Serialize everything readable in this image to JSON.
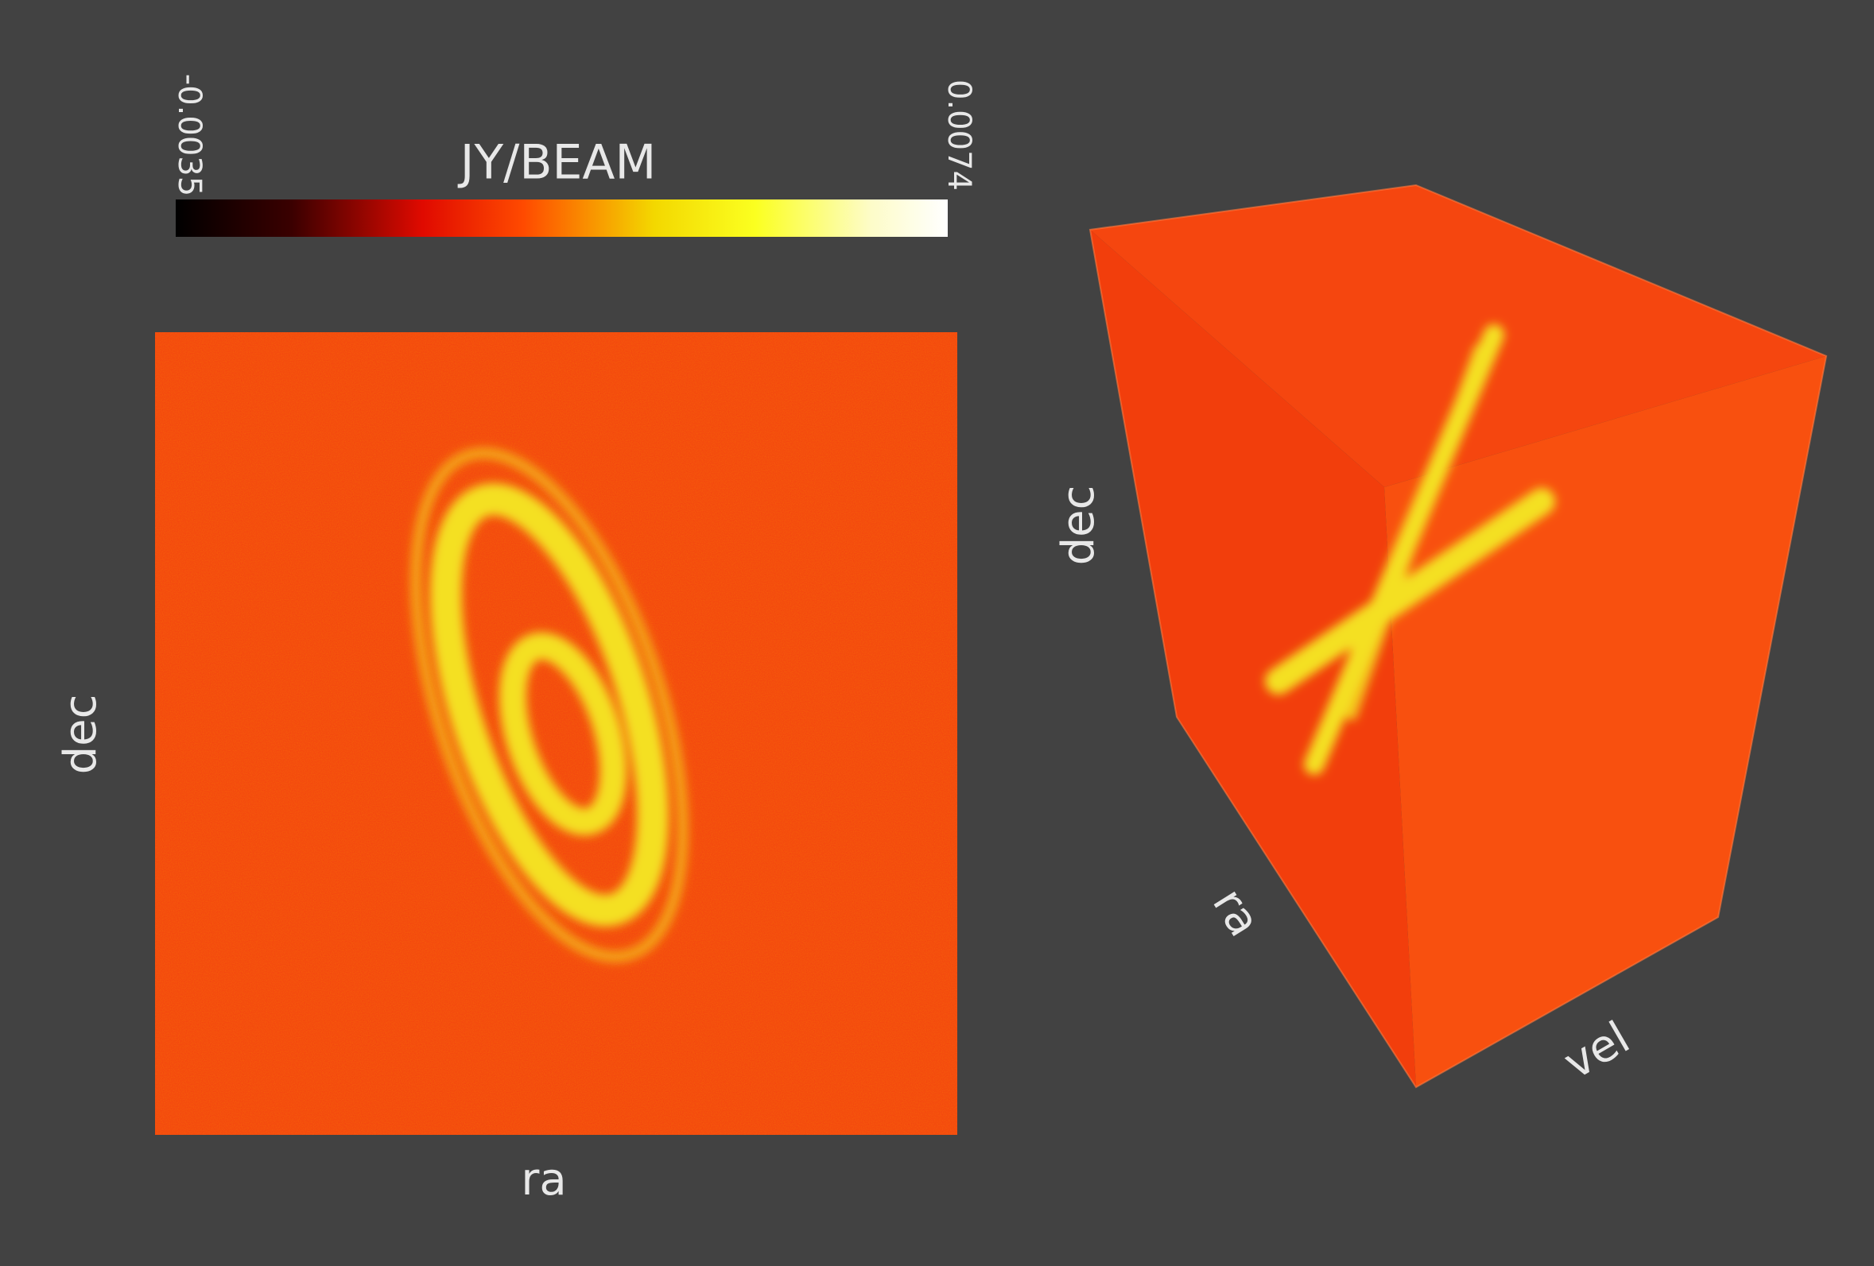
{
  "colorbar": {
    "unit": "JY/BEAM",
    "min_label": "-0.0035",
    "max_label": "0.0074"
  },
  "slice_view": {
    "x_label": "ra",
    "y_label": "dec"
  },
  "cube_view": {
    "dec_label": "dec",
    "ra_label": "ra",
    "vel_label": "vel"
  }
}
